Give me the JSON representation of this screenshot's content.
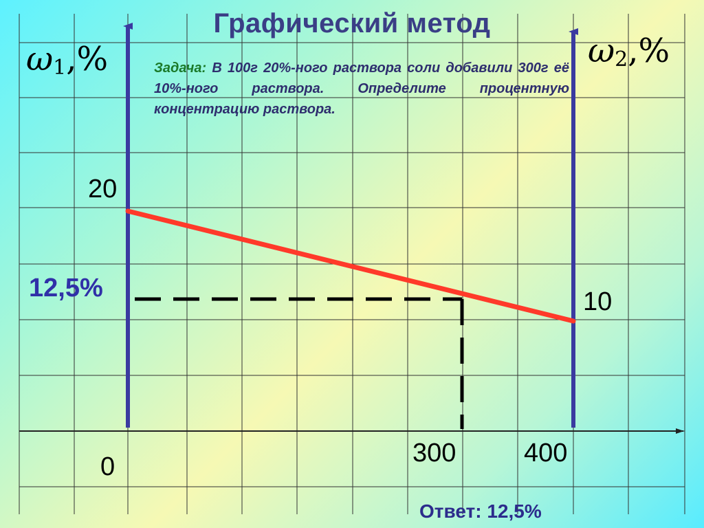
{
  "title": "Графический метод",
  "problem": {
    "lead": "Задача:",
    "text": "В 100г 20%-ного раствора соли добавили 300г её 10%-ного раствора. Определите процентную концентрацию раствора."
  },
  "answer": "Ответ: 12,5%",
  "colors": {
    "axes": "#3a3aa0",
    "mix_line": "#ff3a2a",
    "dashed": "#000000",
    "grid": "#333333",
    "answer_label": "#3030a8"
  },
  "chart_data": {
    "type": "line",
    "title": "Графический метод",
    "left_axis": {
      "symbol": "ω",
      "subscript": "1",
      "unit": ",%"
    },
    "right_axis": {
      "symbol": "ω",
      "subscript": "2",
      "unit": ",%"
    },
    "x": [
      0,
      400
    ],
    "y": [
      20,
      10
    ],
    "xlim": [
      0,
      400
    ],
    "ylim": [
      0,
      20
    ],
    "grid": true,
    "tick_labels": {
      "x_origin": "0",
      "x_mix": "300",
      "x_end": "400",
      "y_left": "20",
      "y_right": "10",
      "y_answer": "12,5%"
    },
    "answer_point": {
      "x": 300,
      "y": 12.5
    }
  }
}
